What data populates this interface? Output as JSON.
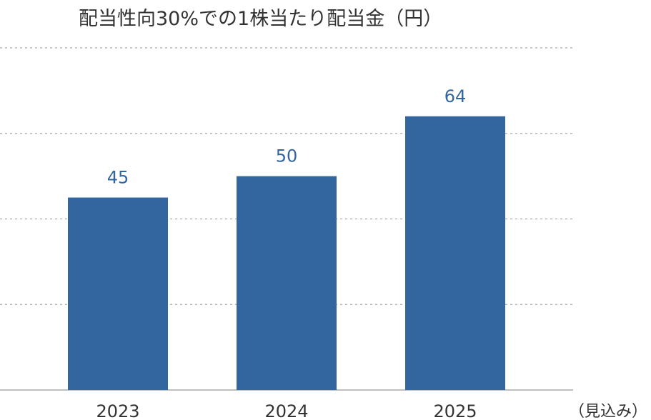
{
  "chart_data": {
    "type": "bar",
    "title": "配当性向30%での1株当たり配当金（円）",
    "categories": [
      "2023",
      "2024",
      "2025"
    ],
    "values": [
      45,
      50,
      64
    ],
    "ylim": [
      0,
      80
    ],
    "grid": true,
    "gridlines": [
      20,
      40,
      60,
      80
    ],
    "bar_color": "#33659f",
    "label_color": "#33659f",
    "note": "（見込み）"
  }
}
